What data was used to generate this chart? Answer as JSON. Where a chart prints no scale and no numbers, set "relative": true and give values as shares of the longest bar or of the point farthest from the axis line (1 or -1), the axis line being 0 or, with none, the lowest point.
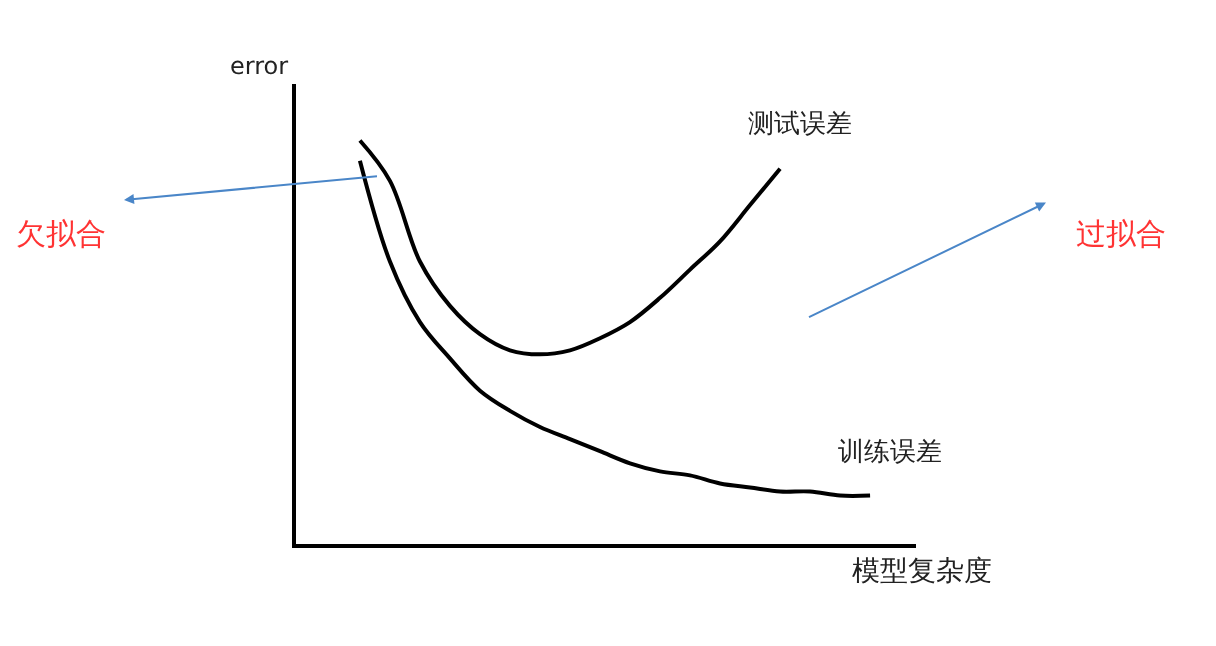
{
  "chart_data": {
    "type": "line",
    "relative": true,
    "ylabel": "error",
    "xlabel": "模型复杂度",
    "legend": false,
    "marker": "none",
    "line_style": "solid",
    "categories": [
      null,
      null,
      null,
      null,
      null,
      null,
      null,
      null,
      null,
      null,
      null,
      null,
      null,
      null,
      null,
      null,
      null,
      null,
      null
    ],
    "series": [
      {
        "name": "测试误差",
        "color": "#000000",
        "values": [
          null,
          1.0,
          0.9,
          0.7,
          0.59,
          0.52,
          0.48,
          0.47,
          0.48,
          0.51,
          0.55,
          0.61,
          0.68,
          0.75,
          0.84,
          0.93,
          null,
          null,
          null
        ]
      },
      {
        "name": "训练误差",
        "color": "#000000",
        "values": [
          null,
          0.95,
          0.7,
          0.55,
          0.46,
          0.38,
          0.33,
          0.29,
          0.26,
          0.23,
          0.2,
          0.18,
          0.17,
          0.15,
          0.14,
          0.13,
          0.13,
          0.12,
          0.12
        ]
      }
    ],
    "annotations": [
      "欠拟合",
      "过拟合"
    ]
  }
}
